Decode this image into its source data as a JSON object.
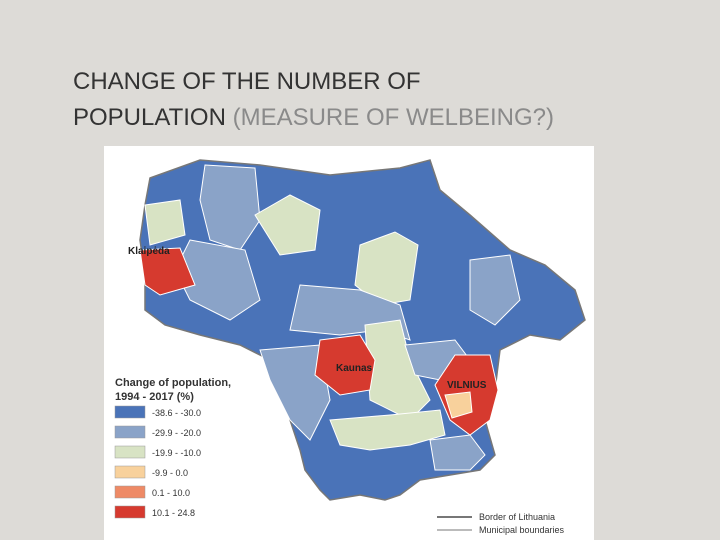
{
  "title": {
    "lines": [
      "CHANGE OF THE NUMBER OF",
      "POPULATION"
    ],
    "subtitle": "(MEASURE OF WELBEING?)"
  },
  "map": {
    "city_labels": [
      "Klaipėda",
      "Kaunas",
      "VILNIUS"
    ],
    "legend": {
      "title_lines": [
        "Change of population,",
        "1994 - 2017 (%)"
      ],
      "items": [
        {
          "label": "-38.6 - -30.0",
          "color": "#4a73b8"
        },
        {
          "label": "-29.9 - -20.0",
          "color": "#8aa3c8"
        },
        {
          "label": "-19.9 - -10.0",
          "color": "#d8e3c4"
        },
        {
          "label": "-9.9 - 0.0",
          "color": "#f8d19c"
        },
        {
          "label": "0.1 - 10.0",
          "color": "#ee8a66"
        },
        {
          "label": "10.1 - 24.8",
          "color": "#d63a2f"
        }
      ],
      "lines": [
        {
          "label": "Border of Lithuania",
          "color": "#777777"
        },
        {
          "label": "Municipal boundaries",
          "color": "#bbbbbb"
        }
      ]
    }
  }
}
